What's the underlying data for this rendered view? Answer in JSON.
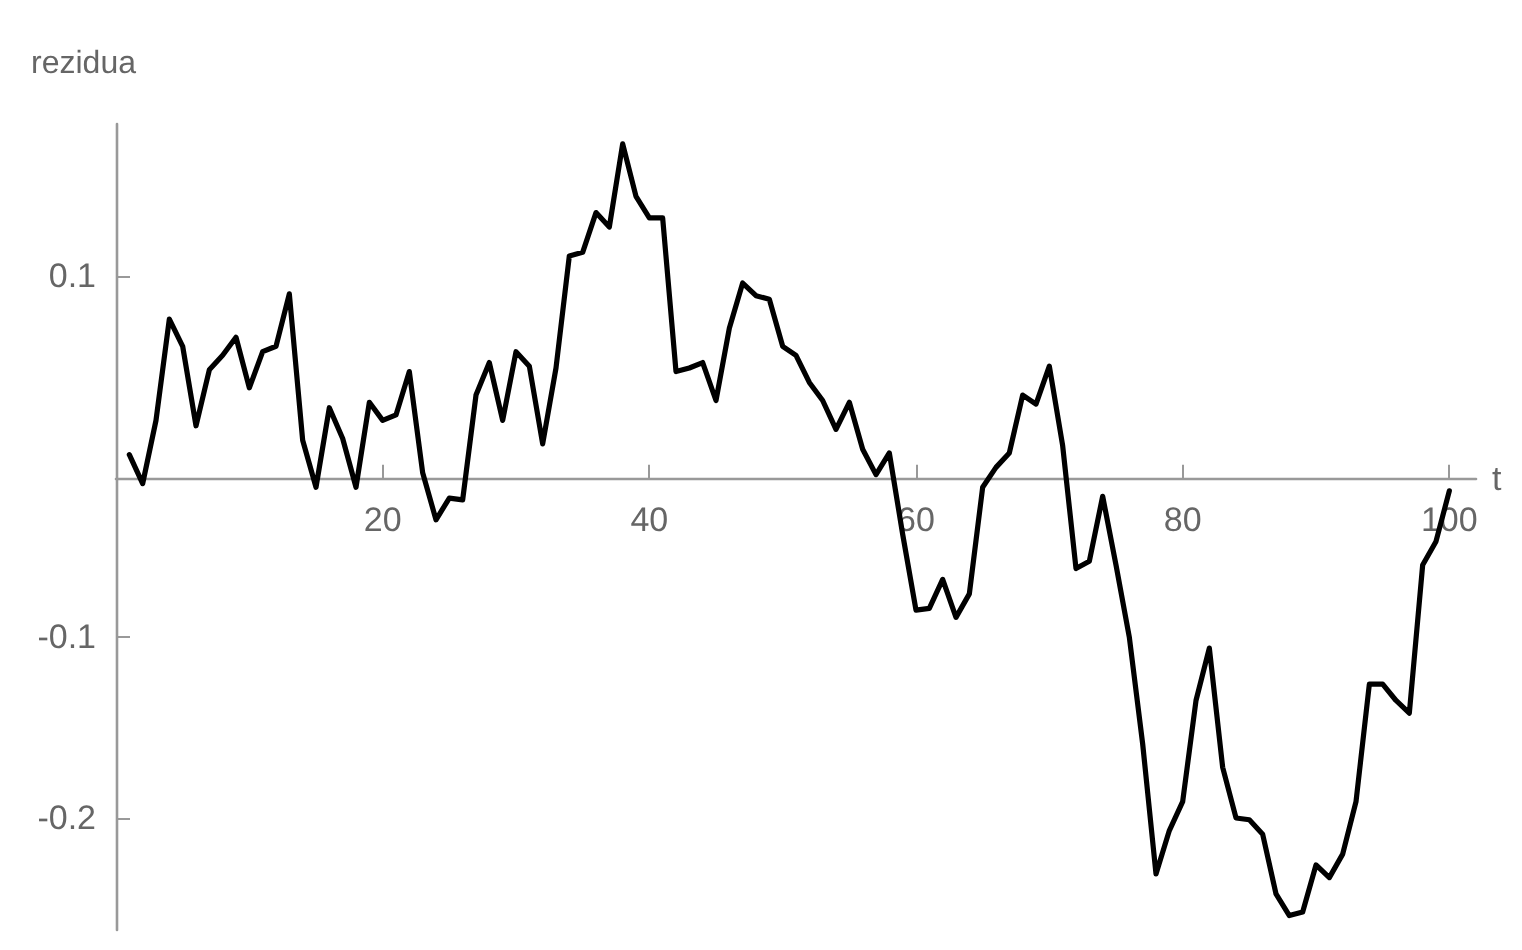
{
  "chart_data": {
    "type": "line",
    "xlabel": "t",
    "ylabel": "rezidua",
    "x": [
      1,
      2,
      3,
      4,
      5,
      6,
      7,
      8,
      9,
      10,
      11,
      12,
      13,
      14,
      15,
      16,
      17,
      18,
      19,
      20,
      21,
      22,
      23,
      24,
      25,
      26,
      27,
      28,
      29,
      30,
      31,
      32,
      33,
      34,
      35,
      36,
      37,
      38,
      39,
      40,
      41,
      42,
      43,
      44,
      45,
      46,
      47,
      48,
      49,
      50,
      51,
      52,
      53,
      54,
      55,
      56,
      57,
      58,
      59,
      60,
      61,
      62,
      63,
      64,
      65,
      66,
      67,
      68,
      69,
      70,
      71,
      72,
      73,
      74,
      75,
      76,
      77,
      78,
      79,
      80,
      81,
      82,
      83,
      84,
      85,
      86,
      87,
      88,
      89,
      90,
      91,
      92,
      93,
      94,
      95,
      96,
      97,
      98,
      99,
      100
    ],
    "series": [
      {
        "color": "#000000",
        "values": [
          0.001,
          -0.015,
          0.02,
          0.076,
          0.061,
          0.017,
          0.048,
          0.056,
          0.066,
          0.038,
          0.058,
          0.061,
          0.09,
          0.009,
          -0.017,
          0.027,
          0.01,
          -0.017,
          0.03,
          0.02,
          0.023,
          0.047,
          -0.009,
          -0.035,
          -0.023,
          -0.024,
          0.034,
          0.052,
          0.02,
          0.058,
          0.05,
          0.007,
          0.049,
          0.111,
          0.113,
          0.135,
          0.127,
          0.173,
          0.144,
          0.132,
          0.132,
          0.047,
          0.049,
          0.052,
          0.031,
          0.071,
          0.096,
          0.089,
          0.087,
          0.061,
          0.056,
          0.041,
          0.031,
          0.015,
          0.03,
          0.004,
          -0.01,
          0.002,
          -0.043,
          -0.085,
          -0.084,
          -0.068,
          -0.089,
          -0.076,
          -0.017,
          -0.006,
          0.002,
          0.034,
          0.029,
          0.05,
          0.006,
          -0.062,
          -0.058,
          -0.022,
          -0.06,
          -0.1,
          -0.159,
          -0.231,
          -0.207,
          -0.191,
          -0.135,
          -0.106,
          -0.172,
          -0.2,
          -0.201,
          -0.209,
          -0.242,
          -0.254,
          -0.252,
          -0.226,
          -0.233,
          -0.22,
          -0.191,
          -0.126,
          -0.126,
          -0.135,
          -0.142,
          -0.06,
          -0.047,
          -0.019
        ]
      }
    ],
    "xlim": [
      0,
      102
    ],
    "ylim": [
      -0.262,
      0.184
    ],
    "xticks": [
      20,
      40,
      60,
      80,
      100
    ],
    "yticks": [
      -0.2,
      -0.1,
      0.1
    ],
    "grid": false,
    "marker": "none",
    "line_style": "solid"
  }
}
